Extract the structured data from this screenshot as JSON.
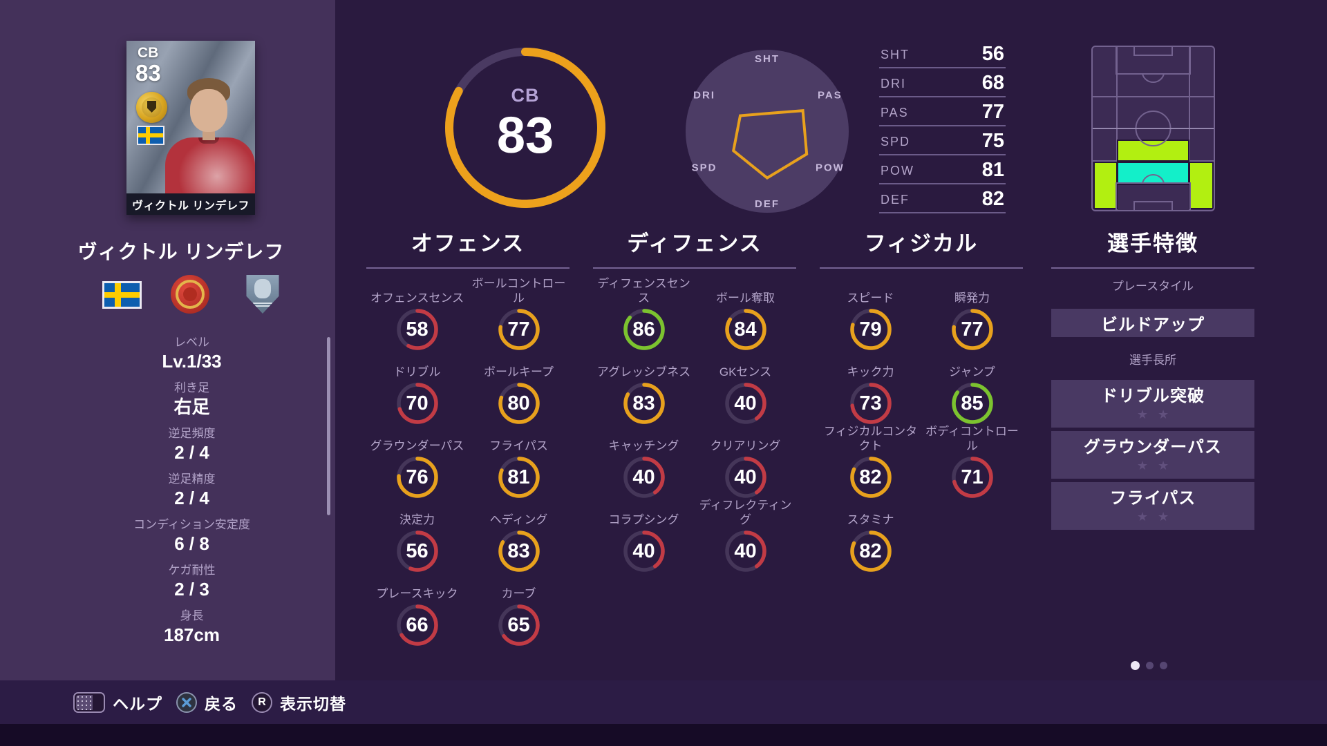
{
  "colors": {
    "background": "#2A1A3F",
    "panel": "#44315A",
    "bottom_bar": "#2C1C45",
    "bottom_strip": "#160B26",
    "tier_red": "#C23B45",
    "tier_orange": "#E8A11D",
    "tier_green": "#7CC32F",
    "ring_track": "#453659",
    "gauge_gold": "#EDA11C",
    "zone_playable": "#B2EF11",
    "zone_main": "#13EFC9"
  },
  "player_card": {
    "position": "CB",
    "rating": "83",
    "name": "ヴィクトル リンデレフ"
  },
  "profile": {
    "name": "ヴィクトル リンデレフ",
    "badges": [
      "sweden-flag",
      "club-crest",
      "english-league-badge"
    ],
    "info": [
      {
        "label": "レベル",
        "value": "Lv.1/33"
      },
      {
        "label": "利き足",
        "value": "右足"
      },
      {
        "label": "逆足頻度",
        "value": "2 / 4"
      },
      {
        "label": "逆足精度",
        "value": "2 / 4"
      },
      {
        "label": "コンディション安定度",
        "value": "6 / 8"
      },
      {
        "label": "ケガ耐性",
        "value": "2 / 3"
      },
      {
        "label": "身長",
        "value": "187cm"
      }
    ]
  },
  "overall": {
    "position": "CB",
    "rating": 83
  },
  "chart_data": {
    "type": "radar",
    "axes": [
      {
        "label": "SHT",
        "value": 56
      },
      {
        "label": "PAS",
        "value": 77
      },
      {
        "label": "POW",
        "value": 81
      },
      {
        "label": "DEF",
        "value": 82
      },
      {
        "label": "SPD",
        "value": 75
      },
      {
        "label": "DRI",
        "value": 68
      }
    ],
    "scale_min": 40,
    "scale_max": 99
  },
  "summary_stats": [
    {
      "label": "SHT",
      "value": "56"
    },
    {
      "label": "DRI",
      "value": "68"
    },
    {
      "label": "PAS",
      "value": "77"
    },
    {
      "label": "SPD",
      "value": "75"
    },
    {
      "label": "POW",
      "value": "81"
    },
    {
      "label": "DEF",
      "value": "82"
    }
  ],
  "position_map": {
    "main_zone_color": "cyan",
    "playable_zone_color": "lime"
  },
  "stat_columns": [
    {
      "title": "オフェンス",
      "stats": [
        {
          "label": "オフェンスセンス",
          "value": 58,
          "tier": "red"
        },
        {
          "label": "ボールコントロール",
          "value": 77,
          "tier": "orange"
        },
        {
          "label": "ドリブル",
          "value": 70,
          "tier": "red"
        },
        {
          "label": "ボールキープ",
          "value": 80,
          "tier": "orange"
        },
        {
          "label": "グラウンダーパス",
          "value": 76,
          "tier": "orange"
        },
        {
          "label": "フライパス",
          "value": 81,
          "tier": "orange"
        },
        {
          "label": "決定力",
          "value": 56,
          "tier": "red"
        },
        {
          "label": "ヘディング",
          "value": 83,
          "tier": "orange"
        },
        {
          "label": "プレースキック",
          "value": 66,
          "tier": "red"
        },
        {
          "label": "カーブ",
          "value": 65,
          "tier": "red"
        }
      ]
    },
    {
      "title": "ディフェンス",
      "stats": [
        {
          "label": "ディフェンスセンス",
          "value": 86,
          "tier": "green"
        },
        {
          "label": "ボール奪取",
          "value": 84,
          "tier": "orange"
        },
        {
          "label": "アグレッシブネス",
          "value": 83,
          "tier": "orange"
        },
        {
          "label": "GKセンス",
          "value": 40,
          "tier": "red"
        },
        {
          "label": "キャッチング",
          "value": 40,
          "tier": "red"
        },
        {
          "label": "クリアリング",
          "value": 40,
          "tier": "red"
        },
        {
          "label": "コラプシング",
          "value": 40,
          "tier": "red"
        },
        {
          "label": "ディフレクティング",
          "value": 40,
          "tier": "red"
        }
      ]
    },
    {
      "title": "フィジカル",
      "stats": [
        {
          "label": "スピード",
          "value": 79,
          "tier": "orange"
        },
        {
          "label": "瞬発力",
          "value": 77,
          "tier": "orange"
        },
        {
          "label": "キック力",
          "value": 73,
          "tier": "red"
        },
        {
          "label": "ジャンプ",
          "value": 85,
          "tier": "green"
        },
        {
          "label": "フィジカルコンタクト",
          "value": 82,
          "tier": "orange"
        },
        {
          "label": "ボディコントロール",
          "value": 71,
          "tier": "red"
        },
        {
          "label": "スタミナ",
          "value": 82,
          "tier": "orange"
        }
      ]
    }
  ],
  "traits": {
    "title": "選手特徴",
    "playstyle_label": "プレースタイル",
    "playstyle": "ビルドアップ",
    "strengths_label": "選手長所",
    "skills": [
      {
        "name": "ドリブル突破",
        "stars_total": 2,
        "stars_filled": 0
      },
      {
        "name": "グラウンダーパス",
        "stars_total": 2,
        "stars_filled": 0
      },
      {
        "name": "フライパス",
        "stars_total": 2,
        "stars_filled": 0
      }
    ]
  },
  "footer": {
    "items": [
      {
        "icon": "touchpad-button",
        "label": "ヘルプ"
      },
      {
        "icon": "cross-button",
        "label": "戻る"
      },
      {
        "icon": "r-button",
        "label": "表示切替",
        "button_text": "R"
      }
    ]
  },
  "pagination": {
    "dots": 3,
    "active_index": 0
  }
}
